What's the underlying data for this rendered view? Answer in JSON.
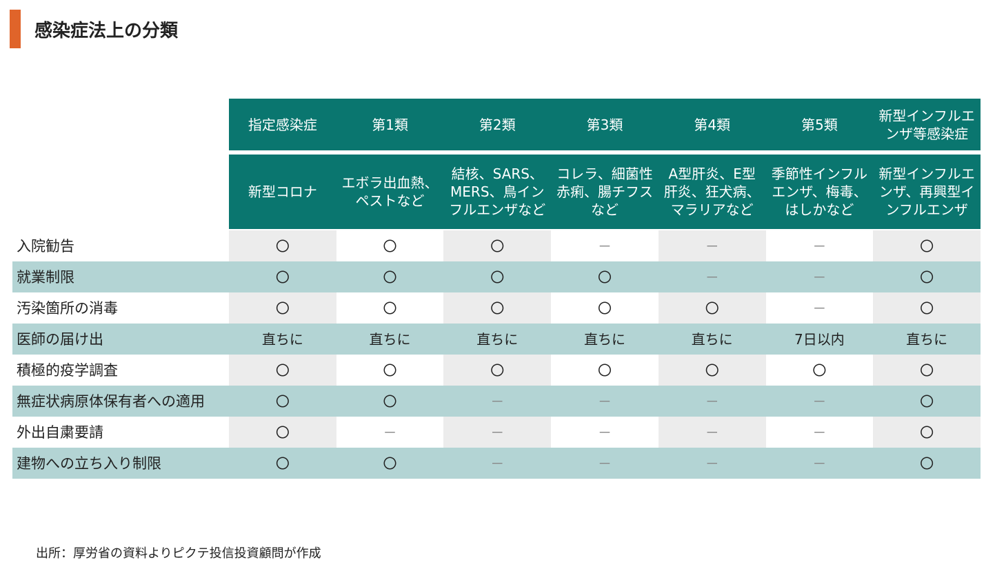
{
  "header": {
    "title": "感染症法上の分類"
  },
  "table": {
    "columns": [
      "指定感染症",
      "第1類",
      "第2類",
      "第3類",
      "第4類",
      "第5類",
      "新型インフルエンザ等感染症"
    ],
    "descriptions": [
      "新型コロナ",
      "エボラ出血熱、ペストなど",
      "結核、SARS、MERS、鳥インフルエンザなど",
      "コレラ、細菌性赤痢、腸チフスなど",
      "A型肝炎、E型肝炎、狂犬病、マラリアなど",
      "季節性インフルエンザ、梅毒、はしかなど",
      "新型インフルエンザ、再興型インフルエンザ"
    ],
    "rows": [
      {
        "label": "入院勧告",
        "cells": [
          "〇",
          "〇",
          "〇",
          "－",
          "－",
          "－",
          "〇"
        ]
      },
      {
        "label": "就業制限",
        "cells": [
          "〇",
          "〇",
          "〇",
          "〇",
          "－",
          "－",
          "〇"
        ]
      },
      {
        "label": "汚染箇所の消毒",
        "cells": [
          "〇",
          "〇",
          "〇",
          "〇",
          "〇",
          "－",
          "〇"
        ]
      },
      {
        "label": "医師の届け出",
        "cells": [
          "直ちに",
          "直ちに",
          "直ちに",
          "直ちに",
          "直ちに",
          "7日以内",
          "直ちに"
        ]
      },
      {
        "label": "積極的疫学調査",
        "cells": [
          "〇",
          "〇",
          "〇",
          "〇",
          "〇",
          "〇",
          "〇"
        ]
      },
      {
        "label": "無症状病原体保有者への適用",
        "cells": [
          "〇",
          "〇",
          "－",
          "－",
          "－",
          "－",
          "〇"
        ]
      },
      {
        "label": "外出自粛要請",
        "cells": [
          "〇",
          "－",
          "－",
          "－",
          "－",
          "－",
          "〇"
        ]
      },
      {
        "label": "建物への立ち入り制限",
        "cells": [
          "〇",
          "〇",
          "－",
          "－",
          "－",
          "－",
          "〇"
        ]
      }
    ]
  },
  "source": "出所：厚労省の資料よりピクテ投信投資顧問が作成"
}
